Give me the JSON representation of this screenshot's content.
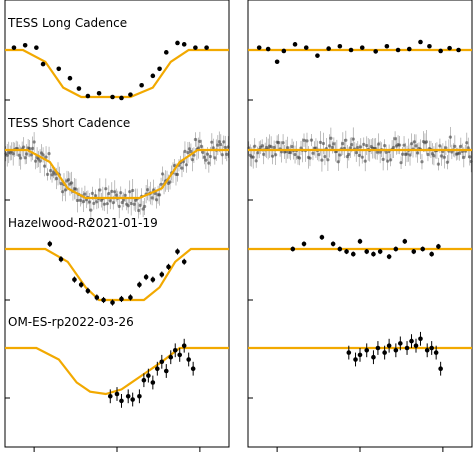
{
  "figure": {
    "description_type": "light-curve panels (transit and phase residual columns)"
  },
  "chart_data": {
    "type": "scatter",
    "panels": [
      {
        "name": "tess-long",
        "label": "TESS Long Cadence",
        "left": {
          "model": [
            [
              0,
              0
            ],
            [
              0.08,
              0
            ],
            [
              0.18,
              -0.25
            ],
            [
              0.26,
              -0.8
            ],
            [
              0.34,
              -1
            ],
            [
              0.56,
              -1
            ],
            [
              0.66,
              -0.8
            ],
            [
              0.74,
              -0.25
            ],
            [
              0.82,
              0
            ],
            [
              1,
              0
            ]
          ],
          "points": [
            [
              0.04,
              0.05,
              0
            ],
            [
              0.09,
              0.1,
              0
            ],
            [
              0.14,
              0.05,
              0
            ],
            [
              0.17,
              -0.3,
              0
            ],
            [
              0.24,
              -0.4,
              0
            ],
            [
              0.29,
              -0.6,
              0
            ],
            [
              0.33,
              -0.82,
              0
            ],
            [
              0.37,
              -0.98,
              0
            ],
            [
              0.42,
              -0.92,
              0
            ],
            [
              0.48,
              -1.0,
              0
            ],
            [
              0.52,
              -1.02,
              0
            ],
            [
              0.56,
              -0.95,
              0
            ],
            [
              0.61,
              -0.75,
              0
            ],
            [
              0.66,
              -0.55,
              0
            ],
            [
              0.69,
              -0.4,
              0
            ],
            [
              0.72,
              -0.05,
              0
            ],
            [
              0.77,
              0.15,
              0
            ],
            [
              0.8,
              0.12,
              0
            ],
            [
              0.85,
              0.05,
              0
            ],
            [
              0.9,
              0.05,
              0
            ]
          ]
        },
        "right": {
          "model": [
            [
              0,
              0
            ],
            [
              1,
              0
            ]
          ],
          "points": [
            [
              0.05,
              0.05,
              0
            ],
            [
              0.09,
              0.02,
              0
            ],
            [
              0.13,
              -0.25,
              0
            ],
            [
              0.16,
              -0.02,
              0
            ],
            [
              0.21,
              0.12,
              0
            ],
            [
              0.26,
              0.05,
              0
            ],
            [
              0.31,
              -0.12,
              0
            ],
            [
              0.36,
              0.03,
              0
            ],
            [
              0.41,
              0.08,
              0
            ],
            [
              0.46,
              0.0,
              0
            ],
            [
              0.51,
              0.05,
              0
            ],
            [
              0.57,
              -0.03,
              0
            ],
            [
              0.62,
              0.08,
              0
            ],
            [
              0.67,
              0.0,
              0
            ],
            [
              0.72,
              0.02,
              0
            ],
            [
              0.77,
              0.17,
              0
            ],
            [
              0.81,
              0.08,
              0
            ],
            [
              0.86,
              -0.02,
              0
            ],
            [
              0.9,
              0.04,
              0
            ],
            [
              0.94,
              0.0,
              0
            ]
          ]
        }
      },
      {
        "name": "tess-short",
        "label": "TESS Short Cadence",
        "left": {
          "model": [
            [
              0,
              0
            ],
            [
              0.1,
              0
            ],
            [
              0.2,
              -0.25
            ],
            [
              0.28,
              -0.8
            ],
            [
              0.36,
              -1
            ],
            [
              0.6,
              -1
            ],
            [
              0.7,
              -0.8
            ],
            [
              0.78,
              -0.25
            ],
            [
              0.86,
              0
            ],
            [
              1,
              0
            ]
          ]
        },
        "right": {
          "model": [
            [
              0,
              0
            ],
            [
              1,
              0
            ]
          ]
        }
      },
      {
        "name": "hazelwood",
        "label": "Hazelwood-Rc",
        "date": "2021-01-19",
        "left": {
          "model": [
            [
              0,
              0
            ],
            [
              0.18,
              0
            ],
            [
              0.28,
              -0.25
            ],
            [
              0.36,
              -0.75
            ],
            [
              0.42,
              -1
            ],
            [
              0.62,
              -1
            ],
            [
              0.69,
              -0.75
            ],
            [
              0.76,
              -0.25
            ],
            [
              0.83,
              0
            ],
            [
              1,
              0
            ]
          ],
          "points": [
            [
              0.2,
              0.1,
              0.06
            ],
            [
              0.25,
              -0.2,
              0.06
            ],
            [
              0.31,
              -0.6,
              0.06
            ],
            [
              0.34,
              -0.7,
              0.06
            ],
            [
              0.37,
              -0.82,
              0.06
            ],
            [
              0.41,
              -0.95,
              0.06
            ],
            [
              0.44,
              -1.0,
              0.06
            ],
            [
              0.48,
              -1.05,
              0.06
            ],
            [
              0.52,
              -0.98,
              0.06
            ],
            [
              0.56,
              -0.95,
              0.06
            ],
            [
              0.6,
              -0.7,
              0.06
            ],
            [
              0.63,
              -0.55,
              0.06
            ],
            [
              0.66,
              -0.6,
              0.06
            ],
            [
              0.7,
              -0.5,
              0.06
            ],
            [
              0.73,
              -0.35,
              0.06
            ],
            [
              0.77,
              -0.05,
              0.06
            ],
            [
              0.8,
              -0.25,
              0.06
            ]
          ]
        },
        "right": {
          "model": [
            [
              0,
              0
            ],
            [
              1,
              0
            ]
          ],
          "points": [
            [
              0.2,
              0.0,
              0.05
            ],
            [
              0.25,
              0.1,
              0.05
            ],
            [
              0.33,
              0.23,
              0.05
            ],
            [
              0.38,
              0.1,
              0.05
            ],
            [
              0.41,
              0.0,
              0.05
            ],
            [
              0.44,
              -0.05,
              0.05
            ],
            [
              0.47,
              -0.1,
              0.05
            ],
            [
              0.5,
              0.15,
              0.05
            ],
            [
              0.53,
              -0.05,
              0.05
            ],
            [
              0.56,
              -0.1,
              0.05
            ],
            [
              0.59,
              -0.05,
              0.05
            ],
            [
              0.63,
              -0.15,
              0.05
            ],
            [
              0.66,
              0.0,
              0.05
            ],
            [
              0.7,
              0.15,
              0.05
            ],
            [
              0.74,
              -0.05,
              0.05
            ],
            [
              0.78,
              0.0,
              0.05
            ],
            [
              0.82,
              -0.1,
              0.05
            ],
            [
              0.85,
              0.05,
              0.05
            ]
          ]
        }
      },
      {
        "name": "om-es",
        "label": "OM-ES-rp",
        "date": "2022-03-26",
        "left": {
          "model": [
            [
              0,
              0
            ],
            [
              0.14,
              0
            ],
            [
              0.24,
              -0.25
            ],
            [
              0.32,
              -0.75
            ],
            [
              0.38,
              -0.95
            ],
            [
              0.45,
              -1
            ],
            [
              0.52,
              -0.9
            ],
            [
              0.61,
              -0.6
            ],
            [
              0.7,
              -0.3
            ],
            [
              0.78,
              0
            ],
            [
              1,
              0
            ]
          ],
          "points": [
            [
              0.47,
              -1.05,
              0.15
            ],
            [
              0.5,
              -1.0,
              0.15
            ],
            [
              0.52,
              -1.15,
              0.15
            ],
            [
              0.55,
              -1.05,
              0.15
            ],
            [
              0.57,
              -1.12,
              0.15
            ],
            [
              0.6,
              -1.05,
              0.15
            ],
            [
              0.62,
              -0.7,
              0.15
            ],
            [
              0.64,
              -0.6,
              0.15
            ],
            [
              0.66,
              -0.75,
              0.15
            ],
            [
              0.68,
              -0.45,
              0.15
            ],
            [
              0.7,
              -0.3,
              0.15
            ],
            [
              0.72,
              -0.5,
              0.15
            ],
            [
              0.74,
              -0.2,
              0.15
            ],
            [
              0.76,
              -0.05,
              0.15
            ],
            [
              0.78,
              -0.15,
              0.15
            ],
            [
              0.8,
              0.05,
              0.15
            ],
            [
              0.82,
              -0.25,
              0.15
            ],
            [
              0.84,
              -0.45,
              0.15
            ]
          ]
        },
        "right": {
          "model": [
            [
              0,
              0
            ],
            [
              1,
              0
            ]
          ],
          "points": [
            [
              0.45,
              -0.1,
              0.15
            ],
            [
              0.48,
              -0.25,
              0.15
            ],
            [
              0.5,
              -0.15,
              0.15
            ],
            [
              0.53,
              -0.05,
              0.15
            ],
            [
              0.56,
              -0.2,
              0.15
            ],
            [
              0.58,
              0.0,
              0.15
            ],
            [
              0.61,
              -0.1,
              0.15
            ],
            [
              0.63,
              0.05,
              0.15
            ],
            [
              0.66,
              -0.05,
              0.15
            ],
            [
              0.68,
              0.1,
              0.15
            ],
            [
              0.71,
              0.0,
              0.15
            ],
            [
              0.73,
              0.15,
              0.15
            ],
            [
              0.75,
              0.05,
              0.15
            ],
            [
              0.77,
              0.2,
              0.15
            ],
            [
              0.8,
              -0.05,
              0.15
            ],
            [
              0.82,
              0.0,
              0.15
            ],
            [
              0.84,
              -0.1,
              0.15
            ],
            [
              0.86,
              -0.45,
              0.15
            ]
          ]
        }
      }
    ]
  }
}
